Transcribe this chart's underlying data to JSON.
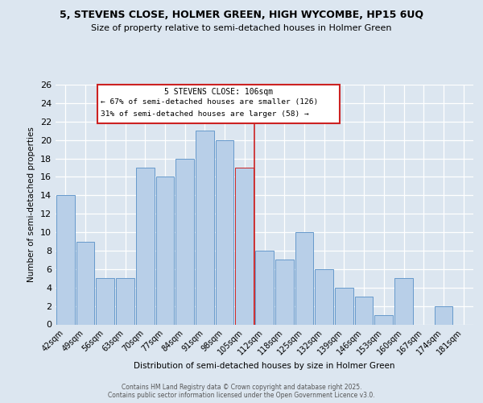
{
  "title_line1": "5, STEVENS CLOSE, HOLMER GREEN, HIGH WYCOMBE, HP15 6UQ",
  "title_line2": "Size of property relative to semi-detached houses in Holmer Green",
  "xlabel": "Distribution of semi-detached houses by size in Holmer Green",
  "ylabel": "Number of semi-detached properties",
  "categories": [
    "42sqm",
    "49sqm",
    "56sqm",
    "63sqm",
    "70sqm",
    "77sqm",
    "84sqm",
    "91sqm",
    "98sqm",
    "105sqm",
    "112sqm",
    "118sqm",
    "125sqm",
    "132sqm",
    "139sqm",
    "146sqm",
    "153sqm",
    "160sqm",
    "167sqm",
    "174sqm",
    "181sqm"
  ],
  "values": [
    14,
    9,
    5,
    5,
    17,
    16,
    18,
    21,
    20,
    17,
    8,
    7,
    10,
    6,
    4,
    3,
    1,
    5,
    0,
    2,
    0
  ],
  "bar_color": "#b8cfe8",
  "bar_edge_color": "#6699cc",
  "highlight_bar_index": 9,
  "highlight_bar_color": "#b8cfe8",
  "highlight_bar_edge_color": "#cc2222",
  "vline_x": 9.5,
  "vline_color": "#cc2222",
  "annotation_title": "5 STEVENS CLOSE: 106sqm",
  "annotation_line1": "← 67% of semi-detached houses are smaller (126)",
  "annotation_line2": "31% of semi-detached houses are larger (58) →",
  "annotation_box_color": "#cc2222",
  "ylim": [
    0,
    26
  ],
  "yticks": [
    0,
    2,
    4,
    6,
    8,
    10,
    12,
    14,
    16,
    18,
    20,
    22,
    24,
    26
  ],
  "bg_color": "#dce6f0",
  "plot_bg_color": "#dce6f0",
  "footer_line1": "Contains HM Land Registry data © Crown copyright and database right 2025.",
  "footer_line2": "Contains public sector information licensed under the Open Government Licence v3.0."
}
